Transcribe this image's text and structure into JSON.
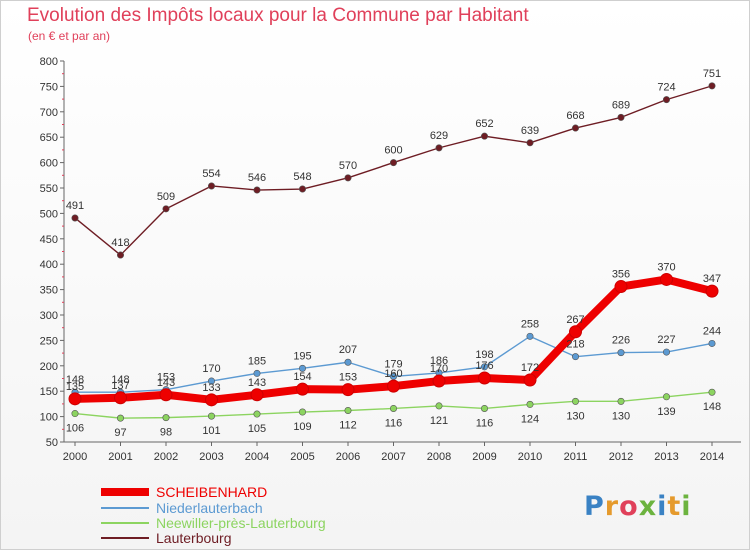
{
  "chart_data": {
    "type": "line",
    "title": "Evolution des Impôts locaux pour la Commune par Habitant",
    "subtitle": "(en € et par an)",
    "x": [
      "2000",
      "2001",
      "2002",
      "2003",
      "2004",
      "2005",
      "2006",
      "2007",
      "2008",
      "2009",
      "2010",
      "2011",
      "2012",
      "2013",
      "2014"
    ],
    "ylim": [
      50,
      800
    ],
    "yticks": [
      50,
      100,
      150,
      200,
      250,
      300,
      350,
      400,
      450,
      500,
      550,
      600,
      650,
      700,
      750,
      800
    ],
    "grid": false,
    "legend": "bottom-left",
    "series": [
      {
        "name": "SCHEIBENHARD",
        "color": "#ee0000",
        "values": [
          135,
          137,
          143,
          133,
          143,
          154,
          153,
          160,
          170,
          176,
          172,
          267,
          356,
          370,
          347
        ]
      },
      {
        "name": "Niederlauterbach",
        "color": "#5c9ad2",
        "values": [
          148,
          148,
          153,
          170,
          185,
          195,
          207,
          179,
          186,
          198,
          258,
          218,
          226,
          227,
          244
        ]
      },
      {
        "name": "Neewiller-près-Lauterbourg",
        "color": "#8cd460",
        "values": [
          106,
          97,
          98,
          101,
          105,
          109,
          112,
          116,
          121,
          116,
          124,
          130,
          130,
          139,
          148
        ]
      },
      {
        "name": "Lauterbourg",
        "color": "#6e1d24",
        "values": [
          491,
          418,
          509,
          554,
          546,
          548,
          570,
          600,
          629,
          652,
          639,
          668,
          689,
          724,
          751
        ]
      }
    ]
  },
  "logo": {
    "letters": [
      "P",
      "r",
      "o",
      "x",
      "i",
      "t",
      "i"
    ],
    "colors": [
      "#3a82c4",
      "#e59a2c",
      "#e0405a",
      "#6cb33f",
      "#3a82c4",
      "#e59a2c",
      "#6cb33f"
    ]
  }
}
